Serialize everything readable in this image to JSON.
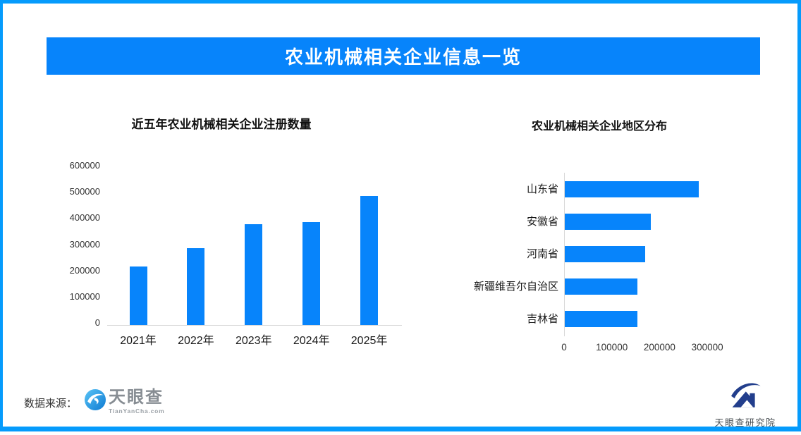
{
  "header": {
    "title": "农业机械相关企业信息一览"
  },
  "theme": {
    "accent_blue": "#0784fb",
    "frame_blue": "#059bfc",
    "axis_line_color": "#d9d9d9"
  },
  "chart_data": [
    {
      "type": "bar",
      "orientation": "vertical",
      "title": "近五年农业机械相关企业注册数量",
      "categories": [
        "2021年",
        "2022年",
        "2023年",
        "2024年",
        "2025年"
      ],
      "values": [
        220000,
        290000,
        380000,
        390000,
        488000
      ],
      "ylim": [
        0,
        600000
      ],
      "yticks": [
        0,
        100000,
        200000,
        300000,
        400000,
        500000,
        600000
      ],
      "grid": false,
      "bar_color": "#0784fb"
    },
    {
      "type": "bar",
      "orientation": "horizontal",
      "title": "农业机械相关企业地区分布",
      "categories": [
        "山东省",
        "安徽省",
        "河南省",
        "新疆维吾尔自治区",
        "吉林省"
      ],
      "values": [
        281000,
        180000,
        168000,
        152000,
        152000
      ],
      "xlim": [
        0,
        350000
      ],
      "xticks": [
        0,
        100000,
        200000,
        300000
      ],
      "grid": false,
      "bar_color": "#0784fb"
    }
  ],
  "footer": {
    "data_source_label": "数据来源：",
    "tianyancha": {
      "name": "天眼查",
      "domain": "TianYanCha.com"
    },
    "research_institute": {
      "name": "天眼查研究院"
    }
  }
}
